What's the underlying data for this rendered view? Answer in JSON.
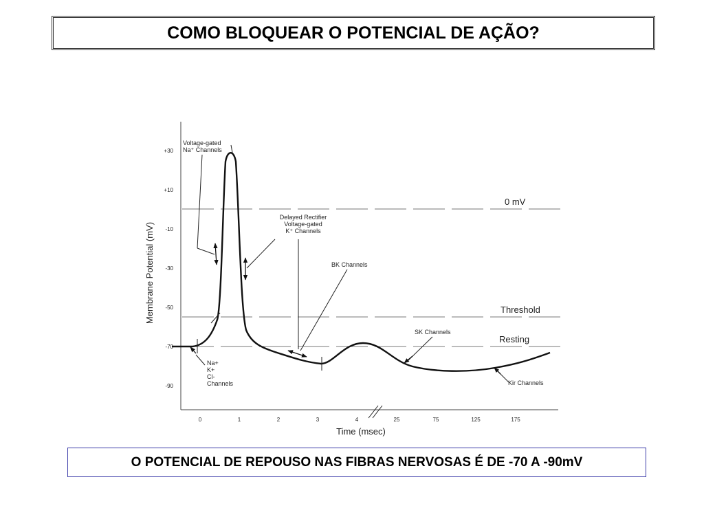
{
  "title": "COMO BLOQUEAR O POTENCIAL DE AÇÃO?",
  "footer": "O POTENCIAL DE REPOUSO NAS FIBRAS NERVOSAS É DE -70 A -90mV",
  "chart_data": {
    "type": "line",
    "xlabel": "Time (msec)",
    "ylabel": "Membrane Potential (mV)",
    "x_ticks": [
      "0",
      "1",
      "2",
      "3",
      "4",
      "25",
      "75",
      "125",
      "175"
    ],
    "y_ticks": [
      "+30",
      "+10",
      "-10",
      "-30",
      "-50",
      "-70",
      "-90"
    ],
    "reference_lines": [
      {
        "label": "0 mV",
        "y": 0
      },
      {
        "label": "Threshold",
        "y": -55
      },
      {
        "label": "Resting",
        "y": -70
      }
    ],
    "annotations": [
      {
        "lines": [
          "Voltage-gated",
          "Na⁺ Channels"
        ]
      },
      {
        "lines": [
          "Delayed Rectifier",
          "Voltage-gated",
          "K⁺ Channels"
        ]
      },
      {
        "lines": [
          "BK Channels"
        ]
      },
      {
        "lines": [
          "SK Channels"
        ]
      },
      {
        "lines": [
          "Kir Channels"
        ]
      },
      {
        "lines": [
          "Na+",
          "K+",
          "Cl-",
          "Channels"
        ]
      }
    ]
  }
}
